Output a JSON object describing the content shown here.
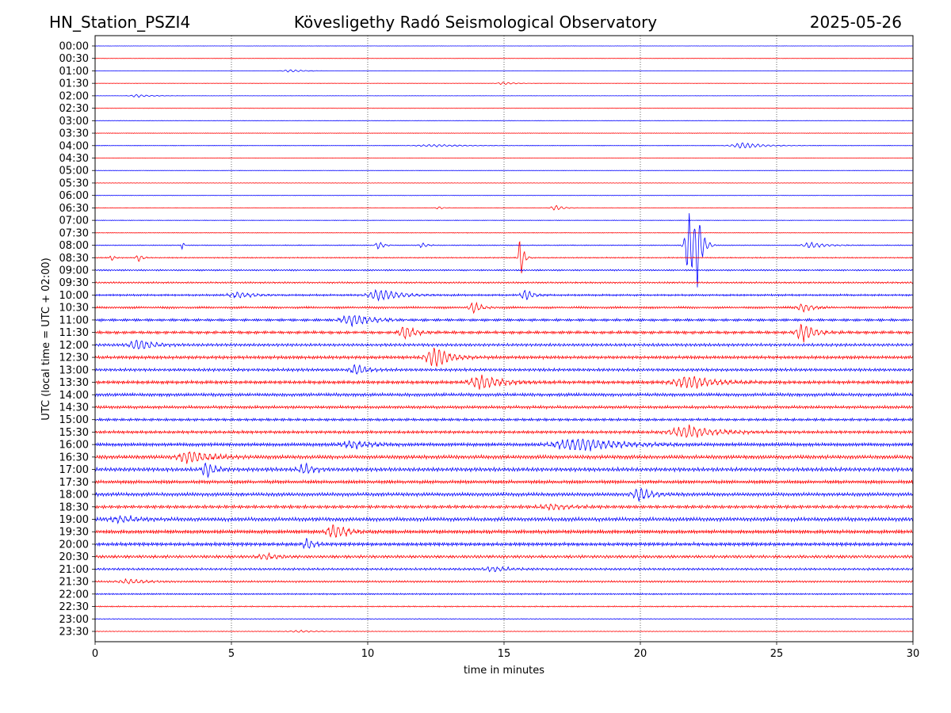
{
  "header": {
    "station": "HN_Station_PSZI4",
    "observatory": "Kövesligethy Radó Seismological Observatory",
    "date": "2025-05-26"
  },
  "chart_data": {
    "type": "line",
    "title": "Kövesligethy Radó Seismological Observatory",
    "xlabel": "time in minutes",
    "ylabel": "UTC (local time = UTC + 02:00)",
    "xlim": [
      0,
      30
    ],
    "xticks": [
      0,
      5,
      10,
      15,
      20,
      25,
      30
    ],
    "grid": "vertical dotted lines at 5, 10, 15, 20, 25 minutes",
    "trace_colors": [
      "#0000ff",
      "#ff0000"
    ],
    "rows": [
      "00:00",
      "00:30",
      "01:00",
      "01:30",
      "02:00",
      "02:30",
      "03:00",
      "03:30",
      "04:00",
      "04:30",
      "05:00",
      "05:30",
      "06:00",
      "06:30",
      "07:00",
      "07:30",
      "08:00",
      "08:30",
      "09:00",
      "09:30",
      "10:00",
      "10:30",
      "11:00",
      "11:30",
      "12:00",
      "12:30",
      "13:00",
      "13:30",
      "14:00",
      "14:30",
      "15:00",
      "15:30",
      "16:00",
      "16:30",
      "17:00",
      "17:30",
      "18:00",
      "18:30",
      "19:00",
      "19:30",
      "20:00",
      "20:30",
      "21:00",
      "21:30",
      "22:00",
      "22:30",
      "23:00",
      "23:30"
    ],
    "noise_level": [
      0.2,
      0.2,
      0.2,
      0.2,
      0.2,
      0.3,
      0.3,
      0.4,
      0.3,
      0.3,
      0.3,
      0.3,
      0.3,
      0.3,
      0.4,
      0.4,
      0.6,
      0.8,
      1.0,
      1.2,
      1.3,
      1.5,
      1.8,
      2.0,
      2.0,
      2.2,
      2.0,
      2.3,
      2.2,
      2.0,
      1.8,
      2.0,
      2.4,
      2.6,
      2.6,
      2.4,
      2.4,
      2.2,
      2.6,
      2.7,
      2.4,
      2.0,
      1.6,
      1.3,
      1.0,
      0.8,
      0.6,
      0.4
    ],
    "events": [
      {
        "row": "01:00",
        "t": 7.2,
        "amp": 1.8,
        "dur": 0.5
      },
      {
        "row": "01:30",
        "t": 15.0,
        "amp": 2.0,
        "dur": 0.4
      },
      {
        "row": "02:00",
        "t": 1.6,
        "amp": 2.0,
        "dur": 0.5
      },
      {
        "row": "04:00",
        "t": 12.5,
        "amp": 1.6,
        "dur": 1.2
      },
      {
        "row": "04:00",
        "t": 23.8,
        "amp": 4.0,
        "dur": 0.8
      },
      {
        "row": "06:30",
        "t": 16.9,
        "amp": 4.0,
        "dur": 0.3
      },
      {
        "row": "06:30",
        "t": 12.6,
        "amp": 2.0,
        "dur": 0.2
      },
      {
        "row": "08:00",
        "t": 3.2,
        "amp": 10.0,
        "dur": 0.05
      },
      {
        "row": "08:00",
        "t": 10.4,
        "amp": 6.0,
        "dur": 0.2
      },
      {
        "row": "08:00",
        "t": 12.0,
        "amp": 4.0,
        "dur": 0.2
      },
      {
        "row": "08:00",
        "t": 21.8,
        "amp": 50.0,
        "dur": 0.25
      },
      {
        "row": "08:00",
        "t": 22.1,
        "amp": 45.0,
        "dur": 0.15
      },
      {
        "row": "08:00",
        "t": 26.3,
        "amp": 4.0,
        "dur": 0.6
      },
      {
        "row": "08:30",
        "t": 15.6,
        "amp": 30.0,
        "dur": 0.12
      },
      {
        "row": "08:30",
        "t": 0.6,
        "amp": 5.0,
        "dur": 0.1
      },
      {
        "row": "08:30",
        "t": 1.6,
        "amp": 6.0,
        "dur": 0.15
      },
      {
        "row": "10:00",
        "t": 5.3,
        "amp": 4.0,
        "dur": 0.7
      },
      {
        "row": "10:00",
        "t": 10.5,
        "amp": 8.0,
        "dur": 0.8
      },
      {
        "row": "10:00",
        "t": 15.8,
        "amp": 8.0,
        "dur": 0.3
      },
      {
        "row": "10:30",
        "t": 13.9,
        "amp": 8.0,
        "dur": 0.3
      },
      {
        "row": "10:30",
        "t": 26.0,
        "amp": 6.0,
        "dur": 0.4
      },
      {
        "row": "11:00",
        "t": 9.5,
        "amp": 8.0,
        "dur": 0.8
      },
      {
        "row": "11:30",
        "t": 11.4,
        "amp": 10.0,
        "dur": 0.4
      },
      {
        "row": "11:30",
        "t": 26.0,
        "amp": 12.0,
        "dur": 0.5
      },
      {
        "row": "12:00",
        "t": 1.6,
        "amp": 8.0,
        "dur": 0.6
      },
      {
        "row": "12:30",
        "t": 12.5,
        "amp": 14.0,
        "dur": 0.6
      },
      {
        "row": "13:00",
        "t": 9.6,
        "amp": 8.0,
        "dur": 0.4
      },
      {
        "row": "13:30",
        "t": 14.2,
        "amp": 10.0,
        "dur": 0.8
      },
      {
        "row": "13:30",
        "t": 21.8,
        "amp": 9.0,
        "dur": 1.0
      },
      {
        "row": "15:30",
        "t": 21.8,
        "amp": 8.0,
        "dur": 1.2
      },
      {
        "row": "16:00",
        "t": 9.5,
        "amp": 5.0,
        "dur": 0.8
      },
      {
        "row": "16:00",
        "t": 17.8,
        "amp": 9.0,
        "dur": 1.6
      },
      {
        "row": "16:30",
        "t": 3.5,
        "amp": 9.0,
        "dur": 0.8
      },
      {
        "row": "17:00",
        "t": 4.1,
        "amp": 12.0,
        "dur": 0.3
      },
      {
        "row": "17:00",
        "t": 7.7,
        "amp": 8.0,
        "dur": 0.4
      },
      {
        "row": "18:00",
        "t": 20.0,
        "amp": 9.0,
        "dur": 0.5
      },
      {
        "row": "18:30",
        "t": 16.8,
        "amp": 4.0,
        "dur": 0.8
      },
      {
        "row": "19:00",
        "t": 1.0,
        "amp": 4.0,
        "dur": 0.9
      },
      {
        "row": "19:30",
        "t": 8.8,
        "amp": 10.0,
        "dur": 0.5
      },
      {
        "row": "20:00",
        "t": 7.8,
        "amp": 8.0,
        "dur": 0.3
      },
      {
        "row": "20:30",
        "t": 6.3,
        "amp": 4.0,
        "dur": 0.6
      },
      {
        "row": "21:00",
        "t": 14.6,
        "amp": 4.0,
        "dur": 0.6
      },
      {
        "row": "21:30",
        "t": 1.3,
        "amp": 3.0,
        "dur": 0.8
      },
      {
        "row": "23:30",
        "t": 7.5,
        "amp": 1.5,
        "dur": 0.8
      }
    ]
  }
}
